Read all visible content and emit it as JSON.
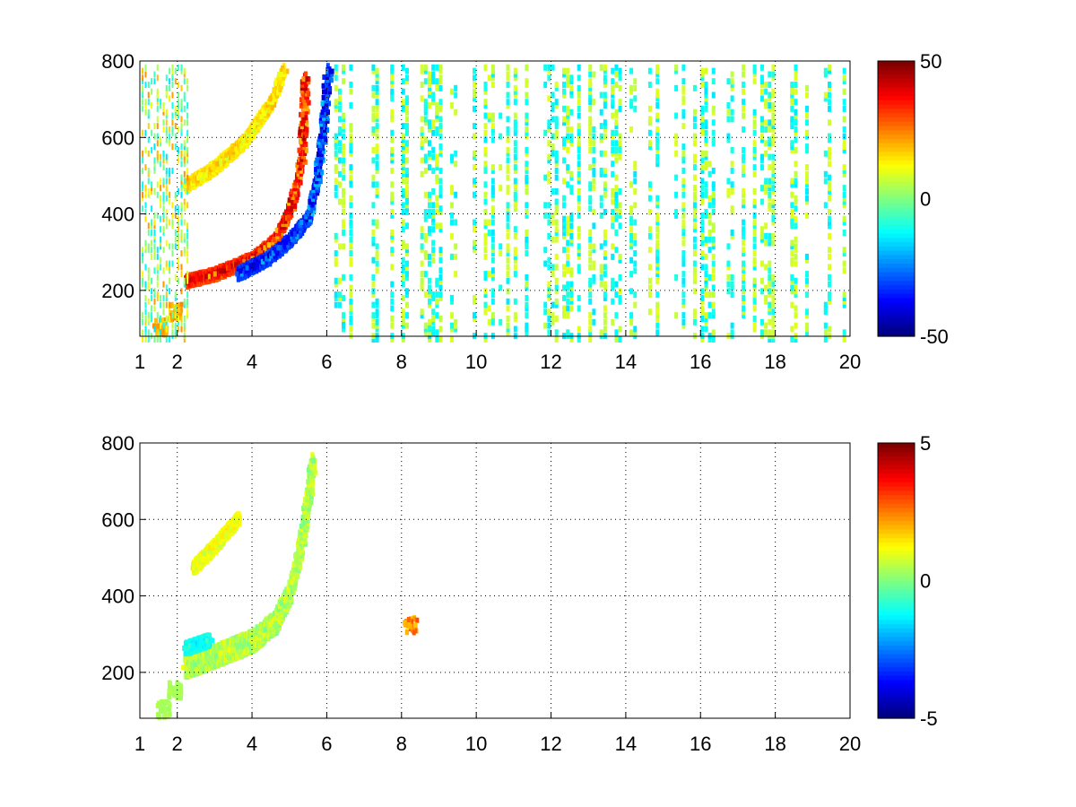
{
  "chart_data": [
    {
      "type": "heatmap",
      "title": "",
      "xlabel": "",
      "ylabel": "",
      "xlim": [
        1,
        20
      ],
      "ylim": [
        80,
        800
      ],
      "x_ticks": [
        "1",
        "2",
        "4",
        "6",
        "8",
        "10",
        "12",
        "14",
        "16",
        "18",
        "20"
      ],
      "x_tick_values": [
        1,
        2,
        4,
        6,
        8,
        10,
        12,
        14,
        16,
        18,
        20
      ],
      "y_ticks": [
        "200",
        "400",
        "600",
        "800"
      ],
      "y_tick_values": [
        200,
        400,
        600,
        800
      ],
      "grid": true,
      "colormap": "jet",
      "colorbar": {
        "min": -50,
        "max": 50,
        "ticks": [
          "-50",
          "0",
          "50"
        ],
        "tick_values": [
          -50,
          0,
          50
        ],
        "placement": "right"
      },
      "features": [
        {
          "kind": "ridge",
          "value": 45,
          "points": [
            [
              2.2,
              230
            ],
            [
              3.0,
              250
            ],
            [
              4.0,
              290
            ],
            [
              4.6,
              340
            ],
            [
              5.0,
              420
            ],
            [
              5.3,
              550
            ],
            [
              5.4,
              760
            ]
          ]
        },
        {
          "kind": "ridge",
          "value": -45,
          "points": [
            [
              3.6,
              250
            ],
            [
              4.4,
              290
            ],
            [
              5.0,
              340
            ],
            [
              5.5,
              400
            ],
            [
              5.7,
              500
            ],
            [
              5.9,
              650
            ],
            [
              6.0,
              780
            ]
          ]
        },
        {
          "kind": "ridge",
          "value": 20,
          "points": [
            [
              2.2,
              480
            ],
            [
              3.0,
              530
            ],
            [
              3.8,
              600
            ],
            [
              4.5,
              700
            ],
            [
              4.8,
              780
            ]
          ]
        },
        {
          "kind": "blob",
          "value": 25,
          "points": [
            [
              1.5,
              110
            ],
            [
              1.9,
              150
            ]
          ]
        }
      ],
      "noise_columns": {
        "x_range": [
          6.2,
          20
        ],
        "values": [
          -15,
          10
        ]
      }
    },
    {
      "type": "heatmap",
      "title": "",
      "xlabel": "",
      "ylabel": "",
      "xlim": [
        1,
        20
      ],
      "ylim": [
        80,
        800
      ],
      "x_ticks": [
        "1",
        "2",
        "4",
        "6",
        "8",
        "10",
        "12",
        "14",
        "16",
        "18",
        "20"
      ],
      "x_tick_values": [
        1,
        2,
        4,
        6,
        8,
        10,
        12,
        14,
        16,
        18,
        20
      ],
      "y_ticks": [
        "200",
        "400",
        "600",
        "800"
      ],
      "y_tick_values": [
        200,
        400,
        600,
        800
      ],
      "grid": true,
      "colormap": "jet",
      "colorbar": {
        "min": -5,
        "max": 5,
        "ticks": [
          "-5",
          "0",
          "5"
        ],
        "tick_values": [
          -5,
          0,
          5
        ],
        "placement": "right"
      },
      "features": [
        {
          "kind": "band",
          "value": 0.5,
          "points": [
            [
              2.2,
              220
            ],
            [
              3.0,
              250
            ],
            [
              4.0,
              290
            ],
            [
              4.6,
              340
            ],
            [
              5.0,
              420
            ],
            [
              5.3,
              550
            ],
            [
              5.6,
              760
            ]
          ]
        },
        {
          "kind": "ridge",
          "value": -1.5,
          "points": [
            [
              2.2,
              270
            ],
            [
              2.8,
              290
            ]
          ]
        },
        {
          "kind": "ridge",
          "value": 1.5,
          "points": [
            [
              2.4,
              480
            ],
            [
              3.0,
              540
            ],
            [
              3.6,
              610
            ]
          ]
        },
        {
          "kind": "blob",
          "value": 3,
          "points": [
            [
              8.2,
              330
            ]
          ]
        },
        {
          "kind": "blob",
          "value": 0.5,
          "points": [
            [
              1.6,
              110
            ],
            [
              1.9,
              160
            ]
          ]
        }
      ]
    }
  ]
}
